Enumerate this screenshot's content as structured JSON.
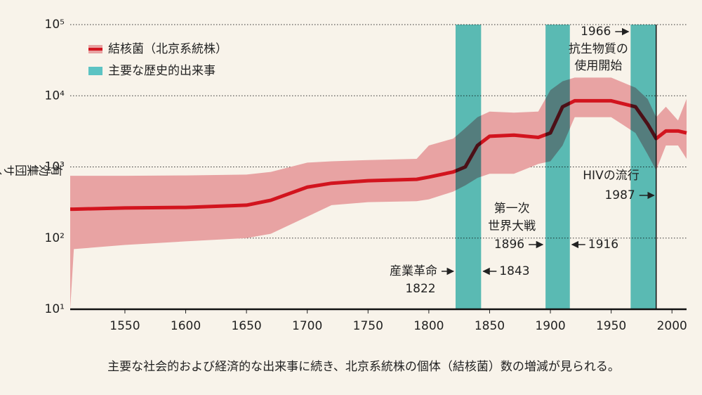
{
  "chart_data": {
    "type": "line",
    "caption": "主要な社会的および経済的な出来事に続き、北京系統株の個体（結核菌）数の増減が見られる。",
    "ylabel": "有効集団サイズ",
    "log_y": true,
    "grid": true,
    "legend": "top-left",
    "xlim": [
      1505,
      2012
    ],
    "xticks": [
      1550,
      1600,
      1650,
      1700,
      1750,
      1800,
      1850,
      1900,
      1950,
      2000
    ],
    "ylim": [
      10,
      100000
    ],
    "yticks": [
      {
        "value": 10,
        "label": "10¹"
      },
      {
        "value": 100,
        "label": "10²"
      },
      {
        "value": 1000,
        "label": "10³"
      },
      {
        "value": 10000,
        "label": "10⁴"
      },
      {
        "value": 100000,
        "label": "10⁵"
      }
    ],
    "x": [
      1505,
      1508,
      1550,
      1600,
      1650,
      1670,
      1700,
      1720,
      1750,
      1790,
      1800,
      1820,
      1830,
      1840,
      1850,
      1870,
      1890,
      1900,
      1910,
      1920,
      1950,
      1970,
      1980,
      1987,
      1995,
      2005,
      2012
    ],
    "series": [
      {
        "name": "結核菌（北京系統株）",
        "color": "#d2141e",
        "band_color": "#e8a3a3",
        "values": [
          255,
          255,
          265,
          270,
          290,
          340,
          520,
          590,
          640,
          670,
          720,
          850,
          1000,
          2000,
          2700,
          2800,
          2600,
          3000,
          7000,
          8500,
          8500,
          7000,
          4000,
          2500,
          3200,
          3200,
          3000
        ],
        "lower": [
          10,
          70,
          80,
          90,
          100,
          115,
          200,
          290,
          320,
          330,
          350,
          450,
          550,
          700,
          800,
          800,
          1100,
          1200,
          2000,
          5000,
          5000,
          3000,
          1500,
          900,
          2000,
          2000,
          1300
        ],
        "upper": [
          750,
          750,
          750,
          760,
          780,
          850,
          1150,
          1200,
          1250,
          1300,
          2000,
          2500,
          3500,
          5000,
          6000,
          5800,
          6000,
          12000,
          16000,
          18000,
          18000,
          13000,
          9000,
          5000,
          7000,
          4500,
          9000
        ]
      }
    ],
    "events_name": "主要な歴史的出来事",
    "events_color": "#5cc3c3",
    "events": [
      {
        "start": 1822,
        "end": 1843,
        "label": [
          "産業革命"
        ]
      },
      {
        "start": 1896,
        "end": 1916,
        "label": [
          "第一次",
          "世界大戦"
        ]
      },
      {
        "start": 1966,
        "end": 1987,
        "label": [
          "抗生物質の",
          "使用開始"
        ]
      }
    ],
    "marker": {
      "year": 1987,
      "label": "HIVの流行"
    }
  }
}
